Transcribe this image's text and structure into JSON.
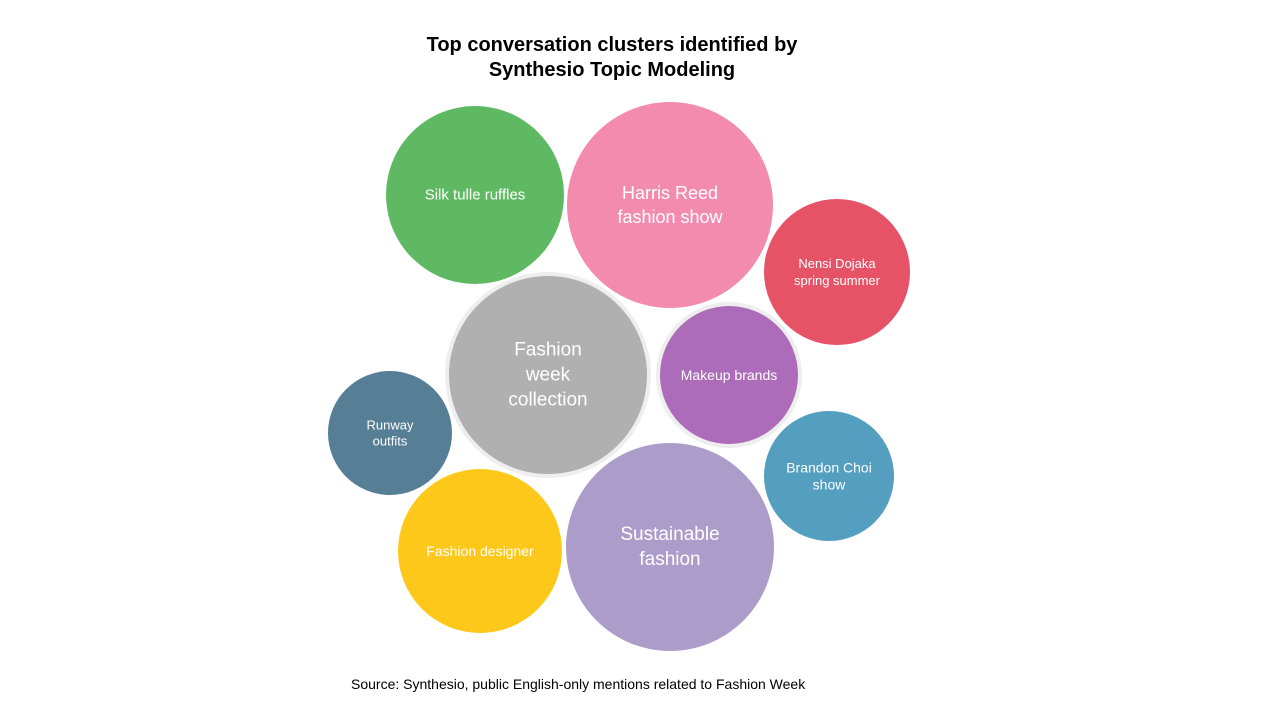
{
  "chart_data": {
    "type": "bubble",
    "title_lines": [
      "Top conversation clusters identified by",
      "Synthesio Topic Modeling"
    ],
    "source": "Source: Synthesio, public English-only mentions related to Fashion Week",
    "legend": "none",
    "clusters": [
      {
        "label_lines": [
          "Silk tulle ruffles"
        ],
        "color": "#5FB962"
      },
      {
        "label_lines": [
          "Harris Reed",
          "fashion show"
        ],
        "color": "#F38BAE"
      },
      {
        "label_lines": [
          "Nensi Dojaka",
          "spring summer"
        ],
        "color": "#E65266"
      },
      {
        "label_lines": [
          "Fashion",
          "week",
          "collection"
        ],
        "color": "#B0B0B0"
      },
      {
        "label_lines": [
          "Makeup brands"
        ],
        "color": "#AD6CB9"
      },
      {
        "label_lines": [
          "Runway",
          "outfits"
        ],
        "color": "#567E94"
      },
      {
        "label_lines": [
          "Brandon Choi",
          "show"
        ],
        "color": "#549EC0"
      },
      {
        "label_lines": [
          "Fashion designer"
        ],
        "color": "#FDC81A"
      },
      {
        "label_lines": [
          "Sustainable",
          "fashion"
        ],
        "color": "#AC9CCA"
      }
    ]
  }
}
